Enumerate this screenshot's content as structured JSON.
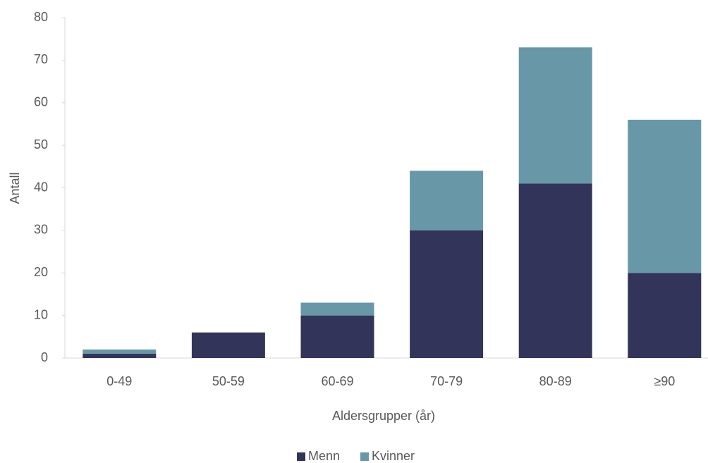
{
  "chart_data": {
    "type": "stacked_bar",
    "x_label": "Aldersgrupper (år)",
    "y_label": "Antall",
    "categories": [
      "0-49",
      "50-59",
      "60-69",
      "70-79",
      "80-89",
      "≥90"
    ],
    "series": [
      {
        "name": "Menn",
        "color": "#32345a",
        "values": [
          1,
          6,
          10,
          30,
          41,
          20
        ]
      },
      {
        "name": "Kvinner",
        "color": "#6898a8",
        "values": [
          1,
          0,
          3,
          14,
          32,
          36
        ]
      }
    ],
    "ylim": [
      0,
      80
    ],
    "yticks": [
      0,
      10,
      20,
      30,
      40,
      50,
      60,
      70,
      80
    ],
    "legend": "bottom"
  }
}
